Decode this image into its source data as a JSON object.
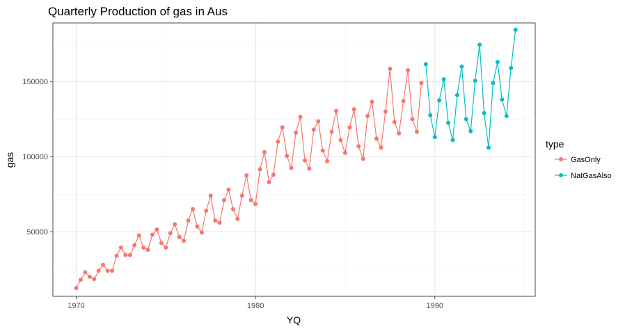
{
  "chart_data": {
    "type": "line",
    "title": "Quarterly Production of gas in Aus",
    "xlabel": "YQ",
    "ylabel": "gas",
    "xlim": [
      1968.7,
      1995.6
    ],
    "ylim": [
      7000,
      189000
    ],
    "x_ticks": [
      1970,
      1980,
      1990
    ],
    "y_ticks": [
      50000,
      100000,
      150000
    ],
    "y_tick_labels": [
      "50000",
      "100000",
      "150000"
    ],
    "x_tick_labels": [
      "1970",
      "1980",
      "1990"
    ],
    "grid": true,
    "legend": {
      "title": "type",
      "position": "right"
    },
    "series": [
      {
        "name": "GasOnly",
        "color": "#F8766D",
        "x": [
          1970.0,
          1970.25,
          1970.5,
          1970.75,
          1971.0,
          1971.25,
          1971.5,
          1971.75,
          1972.0,
          1972.25,
          1972.5,
          1972.75,
          1973.0,
          1973.25,
          1973.5,
          1973.75,
          1974.0,
          1974.25,
          1974.5,
          1974.75,
          1975.0,
          1975.25,
          1975.5,
          1975.75,
          1976.0,
          1976.25,
          1976.5,
          1976.75,
          1977.0,
          1977.25,
          1977.5,
          1977.75,
          1978.0,
          1978.25,
          1978.5,
          1978.75,
          1979.0,
          1979.25,
          1979.5,
          1979.75,
          1980.0,
          1980.25,
          1980.5,
          1980.75,
          1981.0,
          1981.25,
          1981.5,
          1981.75,
          1982.0,
          1982.25,
          1982.5,
          1982.75,
          1983.0,
          1983.25,
          1983.5,
          1983.75,
          1984.0,
          1984.25,
          1984.5,
          1984.75,
          1985.0,
          1985.25,
          1985.5,
          1985.75,
          1986.0,
          1986.25,
          1986.5,
          1986.75,
          1987.0,
          1987.25,
          1987.5,
          1987.75,
          1988.0,
          1988.25,
          1988.5,
          1988.75,
          1989.0,
          1989.25
        ],
        "values": [
          12500,
          18000,
          23000,
          20000,
          18500,
          24000,
          28000,
          24000,
          24000,
          34000,
          39500,
          34500,
          34500,
          41000,
          47500,
          39500,
          38000,
          48000,
          51500,
          42500,
          39500,
          49000,
          55000,
          46500,
          44000,
          57500,
          65000,
          53500,
          49500,
          64000,
          74000,
          57500,
          56000,
          71000,
          78000,
          65000,
          58500,
          74000,
          87500,
          71000,
          68500,
          91500,
          103000,
          83000,
          88000,
          110000,
          119500,
          100500,
          92500,
          116000,
          126500,
          97500,
          92000,
          118000,
          123500,
          104000,
          97000,
          116500,
          130500,
          111000,
          102500,
          119500,
          131500,
          107000,
          98500,
          127000,
          136500,
          112000,
          106000,
          130000,
          158500,
          123000,
          115500,
          137000,
          157500,
          125000,
          116500,
          149000
        ]
      },
      {
        "name": "NatGasAlso",
        "color": "#00BFC4",
        "x": [
          1989.5,
          1989.75,
          1990.0,
          1990.25,
          1990.5,
          1990.75,
          1991.0,
          1991.25,
          1991.5,
          1991.75,
          1992.0,
          1992.25,
          1992.5,
          1992.75,
          1993.0,
          1993.25,
          1993.5,
          1993.75,
          1994.0,
          1994.25,
          1994.5
        ],
        "values": [
          161500,
          127500,
          113000,
          137500,
          151500,
          122500,
          111000,
          141000,
          160000,
          125000,
          117000,
          150500,
          174500,
          129000,
          106000,
          149000,
          163000,
          138000,
          127000,
          159000,
          184500
        ]
      }
    ]
  }
}
